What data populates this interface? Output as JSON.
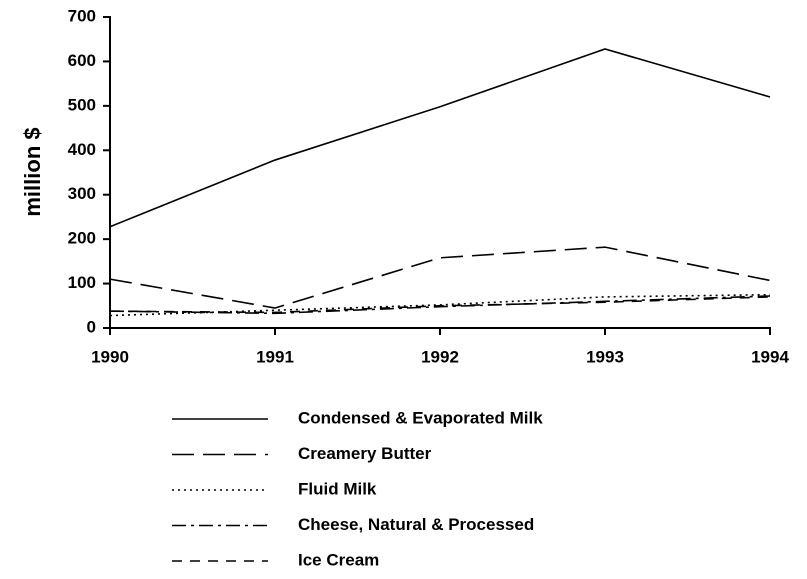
{
  "chart_data": {
    "type": "line",
    "y_label": "million $",
    "categories": [
      "1990",
      "1991",
      "1992",
      "1993",
      "1994"
    ],
    "series": [
      {
        "name": "Condensed & Evaporated Milk",
        "color": "#000000",
        "dash": "solid",
        "values": [
          228,
          378,
          498,
          628,
          520
        ]
      },
      {
        "name": "Creamery Butter",
        "color": "#000000",
        "dash": "long-dash",
        "values": [
          110,
          45,
          158,
          182,
          107
        ]
      },
      {
        "name": "Fluid Milk",
        "color": "#000000",
        "dash": "dotted",
        "values": [
          28,
          40,
          52,
          70,
          75
        ]
      },
      {
        "name": "Cheese, Natural & Processed",
        "color": "#000000",
        "dash": "dash-dot",
        "values": [
          38,
          33,
          48,
          60,
          72
        ]
      },
      {
        "name": "Ice Cream",
        "color": "#000000",
        "dash": "short-dash",
        "values": [
          38,
          35,
          50,
          58,
          70
        ]
      }
    ],
    "ylim": [
      0,
      700
    ],
    "yticks": [
      0,
      100,
      200,
      300,
      400,
      500,
      600,
      700
    ],
    "grid": false,
    "legend": "bottom"
  }
}
